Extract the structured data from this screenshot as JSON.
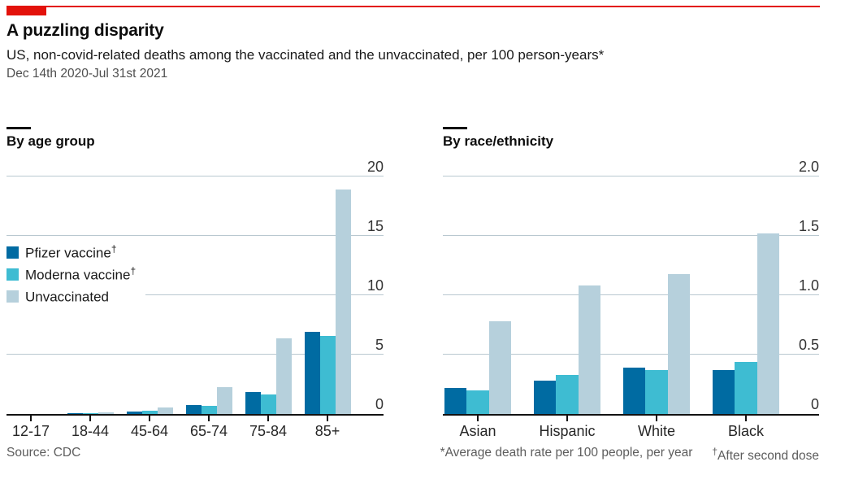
{
  "header": {
    "title": "A puzzling disparity",
    "subtitle": "US, non-covid-related deaths among the vaccinated and the unvaccinated, per 100 person-years*",
    "period": "Dec 14th 2020-Jul 31st 2021"
  },
  "colors": {
    "red": "#e3120b",
    "pfizer": "#006ba2",
    "moderna": "#3ebcd2",
    "unvaccinated": "#b6d0dc",
    "gridline": "#b9c8d0",
    "axis": "#121212"
  },
  "legend": [
    {
      "label": "Pfizer vaccine",
      "sup": "†",
      "color_key": "pfizer"
    },
    {
      "label": "Moderna vaccine",
      "sup": "†",
      "color_key": "moderna"
    },
    {
      "label": "Unvaccinated",
      "sup": "",
      "color_key": "unvaccinated"
    }
  ],
  "footer": {
    "source": "Source: CDC",
    "footnote_star": "*Average death rate per 100 people, per year",
    "footnote_dagger_sym": "†",
    "footnote_dagger": "After second dose"
  },
  "chart_data": [
    {
      "type": "bar",
      "title": "By age group",
      "categories": [
        "12-17",
        "18-44",
        "45-64",
        "65-74",
        "75-84",
        "85+"
      ],
      "series": [
        {
          "name": "Pfizer vaccine†",
          "color_key": "pfizer",
          "values": [
            0.01,
            0.04,
            0.21,
            0.76,
            1.85,
            6.9
          ]
        },
        {
          "name": "Moderna vaccine†",
          "color_key": "moderna",
          "values": [
            0.01,
            0.05,
            0.3,
            0.69,
            1.65,
            6.6
          ]
        },
        {
          "name": "Unvaccinated",
          "color_key": "unvaccinated",
          "values": [
            0.03,
            0.12,
            0.57,
            2.27,
            6.4,
            18.9
          ]
        }
      ],
      "ylim": [
        0,
        20
      ],
      "yticks": [
        0,
        5,
        10,
        15,
        20
      ],
      "ytick_labels": [
        "0",
        "5",
        "10",
        "15",
        "20"
      ],
      "grid": true,
      "legend_position": "inside-left"
    },
    {
      "type": "bar",
      "title": "By race/ethnicity",
      "categories": [
        "Asian",
        "Hispanic",
        "White",
        "Black"
      ],
      "series": [
        {
          "name": "Pfizer vaccine†",
          "color_key": "pfizer",
          "values": [
            0.22,
            0.28,
            0.39,
            0.37
          ]
        },
        {
          "name": "Moderna vaccine†",
          "color_key": "moderna",
          "values": [
            0.2,
            0.33,
            0.37,
            0.44
          ]
        },
        {
          "name": "Unvaccinated",
          "color_key": "unvaccinated",
          "values": [
            0.78,
            1.08,
            1.18,
            1.52
          ]
        }
      ],
      "ylim": [
        0,
        2
      ],
      "yticks": [
        0,
        0.5,
        1,
        1.5,
        2
      ],
      "ytick_labels": [
        "0",
        "0.5",
        "1.0",
        "1.5",
        "2.0"
      ],
      "grid": true,
      "legend_position": "none"
    }
  ]
}
